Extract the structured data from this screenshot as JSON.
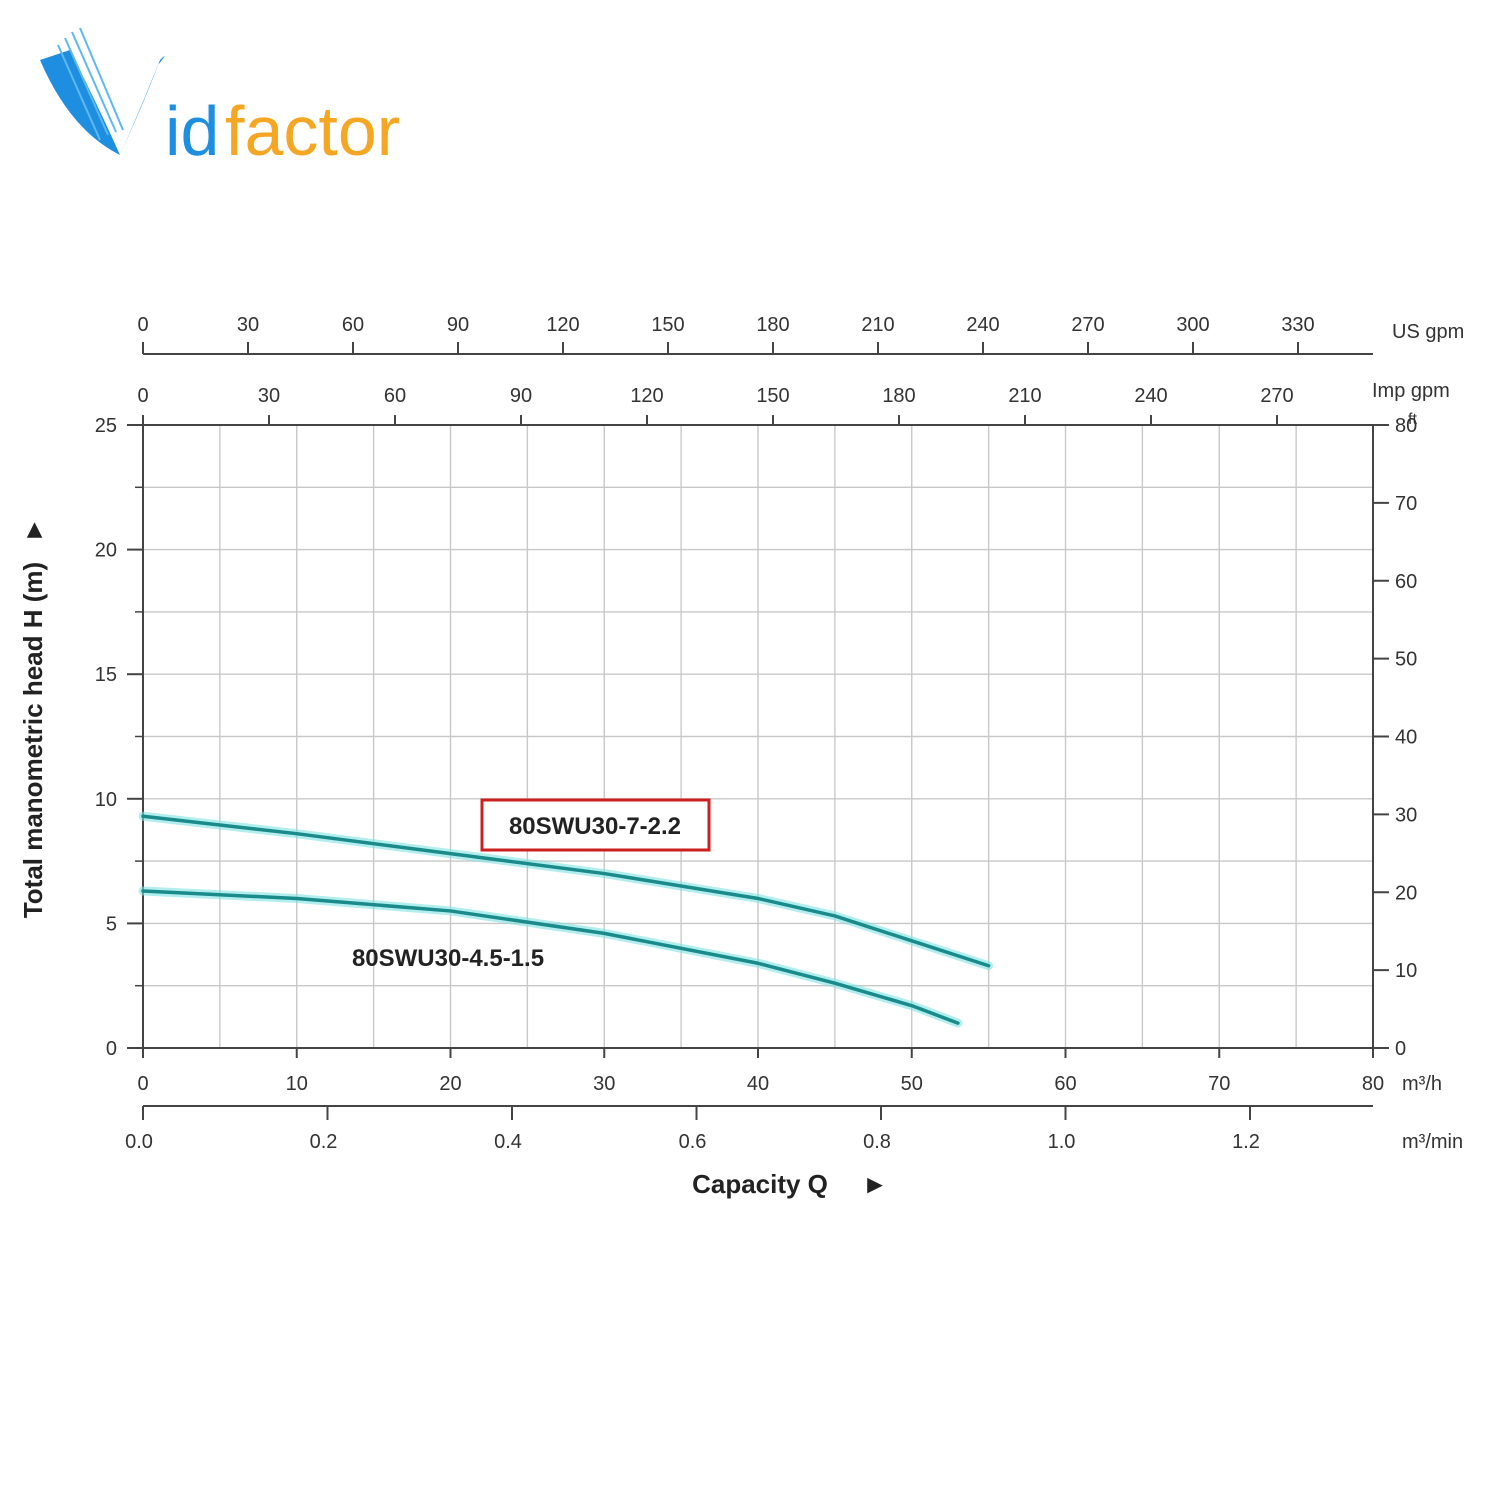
{
  "brand": {
    "logo_text": "Vidfactor",
    "colors": {
      "blue": "#1e8fe0",
      "orange": "#f5a623"
    }
  },
  "chart_data": {
    "type": "line",
    "xlabel": "Capacity Q",
    "ylabel": "Total manometric head H (m)",
    "xlim": [
      0,
      80
    ],
    "ylim": [
      0,
      25
    ],
    "x_unit": "m³/h",
    "x_ticks": [
      0,
      10,
      20,
      30,
      40,
      50,
      60,
      70,
      80
    ],
    "y_ticks": [
      0,
      5,
      10,
      15,
      20,
      25
    ],
    "grid": true,
    "secondary_axes": {
      "bottom_m3_min": {
        "unit": "m³/min",
        "ticks": [
          "0.0",
          "0.2",
          "0.4",
          "0.6",
          "0.8",
          "1.0",
          "1.2"
        ]
      },
      "top_us_gpm": {
        "unit": "US gpm",
        "ticks": [
          "0",
          "30",
          "60",
          "90",
          "120",
          "150",
          "180",
          "210",
          "240",
          "270",
          "300",
          "330"
        ]
      },
      "top_imp_gpm": {
        "unit": "Imp gpm",
        "ticks": [
          "0",
          "30",
          "60",
          "90",
          "120",
          "150",
          "180",
          "210",
          "240",
          "270"
        ]
      },
      "right_ft": {
        "unit": "ft",
        "ticks": [
          "0",
          "10",
          "20",
          "30",
          "40",
          "50",
          "60",
          "70",
          "80"
        ]
      }
    },
    "series": [
      {
        "name": "80SWU30-7-2.2",
        "color": "#1a8a8a",
        "highlighted": true,
        "x": [
          0,
          10,
          20,
          30,
          40,
          45,
          50,
          55
        ],
        "y": [
          9.3,
          8.6,
          7.8,
          7.0,
          6.0,
          5.3,
          4.3,
          3.3
        ]
      },
      {
        "name": "80SWU30-4.5-1.5",
        "color": "#1a8a8a",
        "highlighted": false,
        "x": [
          0,
          10,
          20,
          30,
          40,
          45,
          50,
          53
        ],
        "y": [
          6.3,
          6.0,
          5.5,
          4.6,
          3.4,
          2.6,
          1.7,
          1.0
        ]
      }
    ]
  }
}
